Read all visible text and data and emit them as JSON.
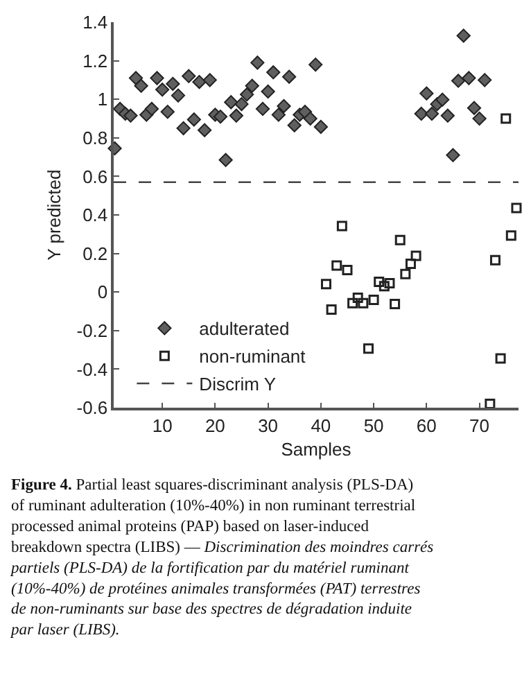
{
  "chart_data": {
    "type": "scatter",
    "xlabel": "Samples",
    "ylabel": "Y predicted",
    "xlim": [
      0.8,
      77.4
    ],
    "xticks": [
      10,
      20,
      30,
      40,
      50,
      60,
      70
    ],
    "ylim": [
      -0.6,
      1.4
    ],
    "yticks": [
      -0.6,
      -0.4,
      -0.2,
      0,
      0.2,
      0.4,
      0.6,
      0.8,
      1,
      1.2,
      1.4
    ],
    "legend": "bottom left",
    "series": [
      {
        "name": "adulterated",
        "color": "#5f5f5f",
        "marker": "diamond",
        "x": [
          1,
          2,
          3,
          4,
          5,
          6,
          7,
          8,
          9,
          10,
          11,
          12,
          13,
          14,
          15,
          16,
          17,
          18,
          19,
          20,
          21,
          22,
          23,
          24,
          25,
          26,
          27,
          28,
          29,
          30,
          31,
          32,
          33,
          34,
          35,
          36,
          37,
          38,
          39,
          40,
          59,
          60,
          61,
          62,
          63,
          64,
          65,
          66,
          67,
          68,
          69,
          70,
          71
        ],
        "values": [
          0.745,
          0.95,
          0.925,
          0.915,
          1.11,
          1.07,
          0.92,
          0.95,
          1.11,
          1.05,
          0.935,
          1.08,
          1.02,
          0.85,
          1.12,
          0.895,
          1.09,
          0.84,
          1.1,
          0.92,
          0.91,
          0.685,
          0.985,
          0.915,
          0.975,
          1.025,
          1.07,
          1.19,
          0.95,
          1.04,
          1.14,
          0.92,
          0.965,
          1.117,
          0.865,
          0.92,
          0.935,
          0.9,
          1.18,
          0.857,
          0.925,
          1.03,
          0.925,
          0.975,
          0.998,
          0.915,
          0.71,
          1.096,
          1.33,
          1.11,
          0.955,
          0.9,
          1.1
        ]
      },
      {
        "name": "non-ruminant",
        "color": "#222222",
        "marker": "square",
        "x": [
          41,
          42,
          43,
          44,
          45,
          46,
          47,
          48,
          49,
          50,
          51,
          52,
          53,
          54,
          55,
          56,
          57,
          58,
          72,
          73,
          74,
          75,
          76,
          77
        ],
        "values": [
          0.041,
          -0.091,
          0.137,
          0.342,
          0.114,
          -0.058,
          -0.03,
          -0.058,
          -0.293,
          -0.041,
          0.053,
          0.03,
          0.046,
          -0.062,
          0.27,
          0.093,
          0.146,
          0.188,
          -0.58,
          0.165,
          -0.345,
          0.9,
          0.293,
          0.436
        ]
      }
    ],
    "ref_lines": [
      {
        "axis": "y",
        "value": 0.57,
        "label": "Discrim Y",
        "color": "#444444",
        "line_style": "dashed"
      }
    ],
    "annotations": [
      "Figure 4.",
      "Partial least squares-discriminant analysis (PLS-DA) of ruminant adulteration (10%-40%) in non ruminant terrestrial processed animal proteins (PAP) based on laser-induced breakdown spectra (LIBS) —",
      "Discrimination des moindres carrés partiels (PLS-DA) de la fortification par du matériel ruminant (10%-40%) de protéines animales transformées (PAT) terrestres de non-ruminants sur base des spectres de dégradation induite par laser (LIBS)."
    ]
  }
}
